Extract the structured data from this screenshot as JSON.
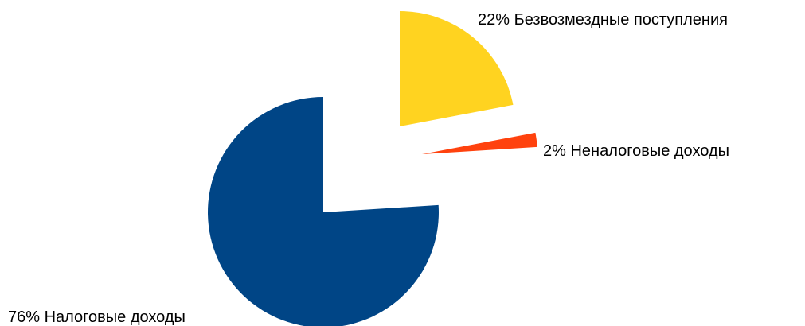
{
  "chart_data": {
    "type": "pie",
    "title": "",
    "slices": [
      {
        "name": "Безвозмездные поступления",
        "value": 22,
        "label": "22% Безвозмездные поступления",
        "color": "#FFD320"
      },
      {
        "name": "Неналоговые доходы",
        "value": 2,
        "label": "2% Неналоговые доходы",
        "color": "#FF420E"
      },
      {
        "name": "Налоговые доходы",
        "value": 76,
        "label": "76% Налоговые доходы",
        "color": "#004586"
      }
    ],
    "exploded": true,
    "legend": "none"
  }
}
